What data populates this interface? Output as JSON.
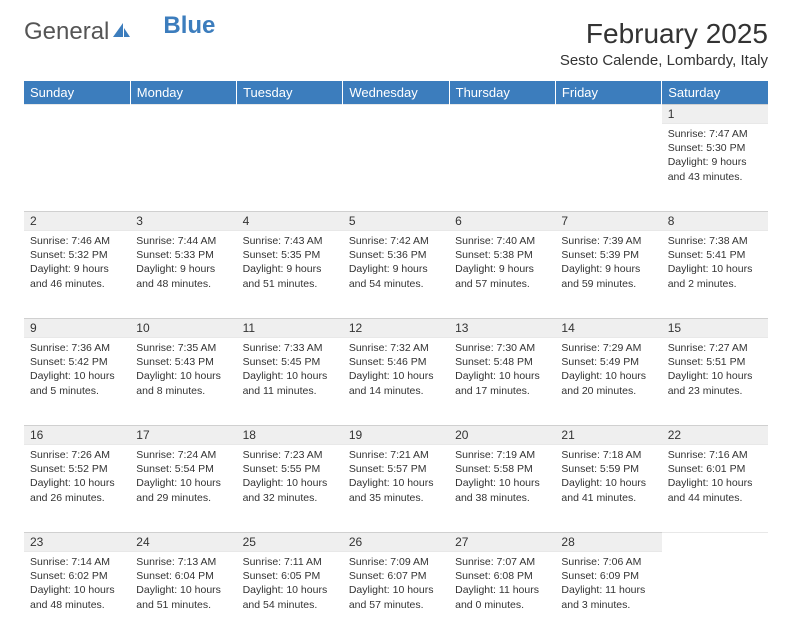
{
  "logo": {
    "general": "General",
    "blue": "Blue"
  },
  "title": "February 2025",
  "location": "Sesto Calende, Lombardy, Italy",
  "day_headers": [
    "Sunday",
    "Monday",
    "Tuesday",
    "Wednesday",
    "Thursday",
    "Friday",
    "Saturday"
  ],
  "colors": {
    "header_bg": "#3c7dbd",
    "header_text": "#ffffff",
    "daynum_bg": "#efefef",
    "text": "#333333",
    "page_bg": "#ffffff",
    "logo_gray": "#555555",
    "logo_blue": "#3c7dbd"
  },
  "typography": {
    "title_fontsize": 28,
    "location_fontsize": 15,
    "header_fontsize": 13,
    "daynum_fontsize": 12,
    "cell_fontsize": 10.5,
    "font_family": "Arial"
  },
  "grid": {
    "cols": 7,
    "rows": 5,
    "blank_leading_cells": 6
  },
  "days": [
    {
      "n": 1,
      "sunrise": "7:47 AM",
      "sunset": "5:30 PM",
      "daylight": "9 hours and 43 minutes."
    },
    {
      "n": 2,
      "sunrise": "7:46 AM",
      "sunset": "5:32 PM",
      "daylight": "9 hours and 46 minutes."
    },
    {
      "n": 3,
      "sunrise": "7:44 AM",
      "sunset": "5:33 PM",
      "daylight": "9 hours and 48 minutes."
    },
    {
      "n": 4,
      "sunrise": "7:43 AM",
      "sunset": "5:35 PM",
      "daylight": "9 hours and 51 minutes."
    },
    {
      "n": 5,
      "sunrise": "7:42 AM",
      "sunset": "5:36 PM",
      "daylight": "9 hours and 54 minutes."
    },
    {
      "n": 6,
      "sunrise": "7:40 AM",
      "sunset": "5:38 PM",
      "daylight": "9 hours and 57 minutes."
    },
    {
      "n": 7,
      "sunrise": "7:39 AM",
      "sunset": "5:39 PM",
      "daylight": "9 hours and 59 minutes."
    },
    {
      "n": 8,
      "sunrise": "7:38 AM",
      "sunset": "5:41 PM",
      "daylight": "10 hours and 2 minutes."
    },
    {
      "n": 9,
      "sunrise": "7:36 AM",
      "sunset": "5:42 PM",
      "daylight": "10 hours and 5 minutes."
    },
    {
      "n": 10,
      "sunrise": "7:35 AM",
      "sunset": "5:43 PM",
      "daylight": "10 hours and 8 minutes."
    },
    {
      "n": 11,
      "sunrise": "7:33 AM",
      "sunset": "5:45 PM",
      "daylight": "10 hours and 11 minutes."
    },
    {
      "n": 12,
      "sunrise": "7:32 AM",
      "sunset": "5:46 PM",
      "daylight": "10 hours and 14 minutes."
    },
    {
      "n": 13,
      "sunrise": "7:30 AM",
      "sunset": "5:48 PM",
      "daylight": "10 hours and 17 minutes."
    },
    {
      "n": 14,
      "sunrise": "7:29 AM",
      "sunset": "5:49 PM",
      "daylight": "10 hours and 20 minutes."
    },
    {
      "n": 15,
      "sunrise": "7:27 AM",
      "sunset": "5:51 PM",
      "daylight": "10 hours and 23 minutes."
    },
    {
      "n": 16,
      "sunrise": "7:26 AM",
      "sunset": "5:52 PM",
      "daylight": "10 hours and 26 minutes."
    },
    {
      "n": 17,
      "sunrise": "7:24 AM",
      "sunset": "5:54 PM",
      "daylight": "10 hours and 29 minutes."
    },
    {
      "n": 18,
      "sunrise": "7:23 AM",
      "sunset": "5:55 PM",
      "daylight": "10 hours and 32 minutes."
    },
    {
      "n": 19,
      "sunrise": "7:21 AM",
      "sunset": "5:57 PM",
      "daylight": "10 hours and 35 minutes."
    },
    {
      "n": 20,
      "sunrise": "7:19 AM",
      "sunset": "5:58 PM",
      "daylight": "10 hours and 38 minutes."
    },
    {
      "n": 21,
      "sunrise": "7:18 AM",
      "sunset": "5:59 PM",
      "daylight": "10 hours and 41 minutes."
    },
    {
      "n": 22,
      "sunrise": "7:16 AM",
      "sunset": "6:01 PM",
      "daylight": "10 hours and 44 minutes."
    },
    {
      "n": 23,
      "sunrise": "7:14 AM",
      "sunset": "6:02 PM",
      "daylight": "10 hours and 48 minutes."
    },
    {
      "n": 24,
      "sunrise": "7:13 AM",
      "sunset": "6:04 PM",
      "daylight": "10 hours and 51 minutes."
    },
    {
      "n": 25,
      "sunrise": "7:11 AM",
      "sunset": "6:05 PM",
      "daylight": "10 hours and 54 minutes."
    },
    {
      "n": 26,
      "sunrise": "7:09 AM",
      "sunset": "6:07 PM",
      "daylight": "10 hours and 57 minutes."
    },
    {
      "n": 27,
      "sunrise": "7:07 AM",
      "sunset": "6:08 PM",
      "daylight": "11 hours and 0 minutes."
    },
    {
      "n": 28,
      "sunrise": "7:06 AM",
      "sunset": "6:09 PM",
      "daylight": "11 hours and 3 minutes."
    }
  ],
  "labels": {
    "sunrise": "Sunrise:",
    "sunset": "Sunset:",
    "daylight": "Daylight:"
  }
}
